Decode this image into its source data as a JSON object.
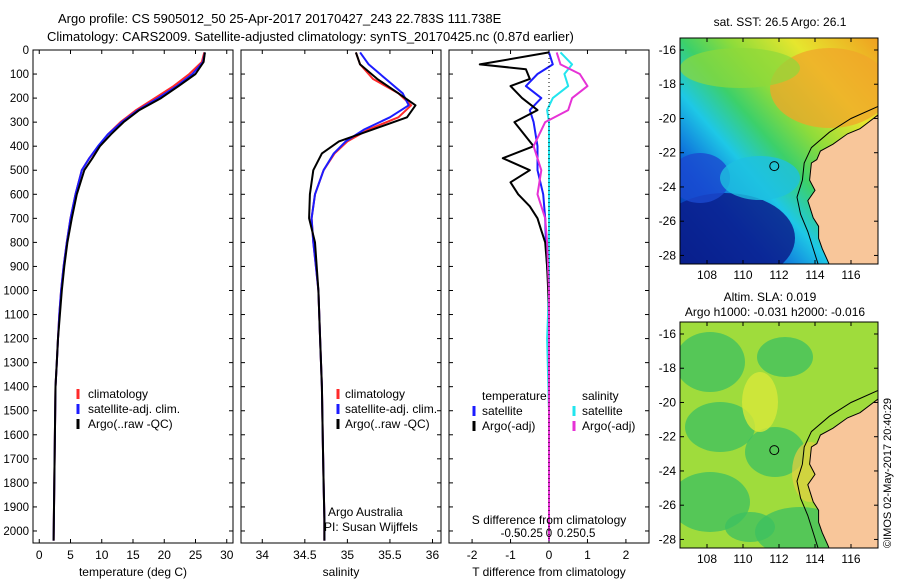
{
  "header": {
    "line1": "Argo profile: CS 5905012_50 25-Apr-2017 20170427_243 22.783S 111.738E",
    "line2": "Climatology: CARS2009. Satellite-adjusted climatology: synTS_20170425.nc (0.87d earlier)"
  },
  "footer_stamp": "©IMOS 02-May-2017 20:40:29",
  "colors": {
    "climatology": "#ff2a2a",
    "satellite": "#1c1cff",
    "argo": "#000000",
    "satellite_s": "#22e5ee",
    "argo_s": "#e632d6"
  },
  "chart_data": [
    {
      "type": "line",
      "id": "temperature",
      "xlabel": "temperature (deg C)",
      "ylabel": "",
      "xlim": [
        -1,
        31
      ],
      "ylim": [
        2050,
        0
      ],
      "xticks": [
        0,
        5,
        10,
        15,
        20,
        25,
        30
      ],
      "yticks": [
        0,
        100,
        200,
        300,
        400,
        500,
        600,
        700,
        800,
        900,
        1000,
        1100,
        1200,
        1300,
        1400,
        1500,
        1600,
        1700,
        1800,
        1900,
        2000
      ],
      "legend": [
        "climatology",
        "satellite-adj. clim.",
        "Argo(..raw -QC)"
      ],
      "series": [
        {
          "name": "climatology",
          "color": "#ff2a2a",
          "x": [
            26.4,
            26.0,
            24.0,
            21.5,
            18.5,
            15.5,
            13.0,
            11.0,
            9.5,
            8.0,
            6.8,
            5.8,
            5.0,
            4.4,
            3.9,
            3.5,
            3.2,
            3.0,
            2.8,
            2.6,
            2.5,
            2.4,
            2.3
          ],
          "y": [
            10,
            50,
            100,
            150,
            200,
            250,
            300,
            350,
            400,
            450,
            500,
            600,
            700,
            800,
            900,
            1000,
            1100,
            1200,
            1300,
            1400,
            1600,
            1800,
            2040
          ]
        },
        {
          "name": "satellite-adj. clim.",
          "color": "#1c1cff",
          "x": [
            26.5,
            26.2,
            24.5,
            22.0,
            19.0,
            15.8,
            13.2,
            11.0,
            9.4,
            8.0,
            6.8,
            5.8,
            5.0,
            4.4,
            3.9,
            3.5,
            3.2,
            3.0,
            2.8,
            2.6,
            2.5,
            2.4,
            2.3
          ],
          "y": [
            10,
            50,
            100,
            150,
            200,
            250,
            300,
            350,
            400,
            450,
            500,
            600,
            700,
            800,
            900,
            1000,
            1100,
            1200,
            1300,
            1400,
            1600,
            1800,
            2040
          ]
        },
        {
          "name": "Argo(..raw -QC)",
          "color": "#000000",
          "x": [
            26.5,
            26.3,
            25.0,
            22.3,
            19.5,
            16.0,
            13.5,
            11.5,
            9.7,
            8.5,
            7.2,
            6.0,
            5.2,
            4.5,
            4.0,
            3.6,
            3.3,
            3.0,
            2.8,
            2.6,
            2.5,
            2.4,
            2.3
          ],
          "y": [
            10,
            50,
            100,
            150,
            200,
            250,
            300,
            350,
            400,
            450,
            500,
            600,
            700,
            800,
            900,
            1000,
            1100,
            1200,
            1300,
            1400,
            1600,
            1800,
            2040
          ]
        }
      ]
    },
    {
      "type": "line",
      "id": "salinity",
      "xlabel": "salinity",
      "ylabel": "",
      "xlim": [
        33.75,
        36.1
      ],
      "ylim": [
        2050,
        0
      ],
      "xticks": [
        34,
        34.5,
        35,
        35.5,
        36
      ],
      "legend": [
        "climatology",
        "satellite-adj. clim.",
        "Argo(..raw -QC)"
      ],
      "annotation": [
        "Argo Australia",
        "PI: Susan Wijffels"
      ],
      "series": [
        {
          "name": "climatology",
          "color": "#ff2a2a",
          "x": [
            35.1,
            35.15,
            35.3,
            35.6,
            35.75,
            35.6,
            35.25,
            35.0,
            34.85,
            34.72,
            34.62,
            34.58,
            34.6,
            34.63,
            34.66,
            34.68,
            34.7,
            34.71,
            34.72,
            34.73,
            34.73
          ],
          "y": [
            10,
            60,
            120,
            180,
            230,
            280,
            330,
            380,
            430,
            500,
            600,
            700,
            800,
            900,
            1000,
            1200,
            1400,
            1600,
            1800,
            1950,
            2040
          ]
        },
        {
          "name": "satellite-adj. clim.",
          "color": "#1c1cff",
          "x": [
            35.15,
            35.25,
            35.45,
            35.65,
            35.72,
            35.5,
            35.2,
            34.98,
            34.84,
            34.72,
            34.62,
            34.58,
            34.6,
            34.63,
            34.66,
            34.68,
            34.7,
            34.71,
            34.72,
            34.73,
            34.73
          ],
          "y": [
            10,
            60,
            120,
            180,
            230,
            280,
            330,
            380,
            430,
            500,
            600,
            700,
            800,
            900,
            1000,
            1200,
            1400,
            1600,
            1800,
            1950,
            2040
          ]
        },
        {
          "name": "Argo(..raw -QC)",
          "color": "#000000",
          "x": [
            35.1,
            35.15,
            35.35,
            35.6,
            35.8,
            35.7,
            35.3,
            34.9,
            34.7,
            34.6,
            34.56,
            34.55,
            34.62,
            34.64,
            34.66,
            34.68,
            34.7,
            34.71,
            34.72,
            34.73,
            34.73
          ],
          "y": [
            10,
            60,
            120,
            180,
            230,
            280,
            330,
            380,
            430,
            500,
            600,
            700,
            800,
            900,
            1000,
            1200,
            1400,
            1600,
            1800,
            1950,
            2040
          ]
        }
      ]
    },
    {
      "type": "line",
      "id": "differences",
      "xlabel": "T difference from climatology",
      "xlabel_top": "S difference from climatology",
      "xlim": [
        -2.6,
        2.6
      ],
      "ylim": [
        2050,
        0
      ],
      "xticks": [
        -2,
        -1,
        0,
        1,
        2
      ],
      "xticks_s_labels": [
        "-0.5",
        "-0.25",
        "0",
        "0.25",
        "0.5"
      ],
      "xticks_s_values": [
        -1,
        -0.5,
        0,
        0.5,
        1
      ],
      "legend_t": {
        "title": "temperature",
        "items": [
          "satellite",
          "Argo(-adj)"
        ]
      },
      "legend_s": {
        "title": "salinity",
        "items": [
          "satellite",
          "Argo(-adj)"
        ]
      },
      "series": [
        {
          "name": "satellite",
          "group": "temperature",
          "color": "#1c1cff",
          "x": [
            0.0,
            0.1,
            -0.3,
            -0.6,
            -0.2,
            -0.5,
            -0.4,
            -0.3,
            -0.3,
            -0.15,
            -0.1,
            -0.08,
            -0.05,
            0.0,
            0.0,
            0.0,
            0.0
          ],
          "y": [
            10,
            60,
            100,
            150,
            200,
            250,
            300,
            400,
            500,
            600,
            700,
            800,
            900,
            1000,
            1200,
            1600,
            2040
          ]
        },
        {
          "name": "Argo(-adj)",
          "group": "temperature",
          "color": "#000000",
          "x": [
            0.0,
            -1.8,
            -0.6,
            -0.5,
            -1.0,
            -0.7,
            -0.3,
            -0.9,
            -0.4,
            -1.2,
            -0.5,
            -1.0,
            -0.8,
            -0.5,
            -0.3,
            -0.2,
            -0.1,
            -0.05,
            -0.02,
            0.0,
            0.0
          ],
          "y": [
            10,
            60,
            80,
            120,
            150,
            200,
            250,
            300,
            400,
            450,
            500,
            550,
            600,
            650,
            700,
            750,
            800,
            900,
            1000,
            1500,
            2040
          ]
        },
        {
          "name": "satellite",
          "group": "salinity",
          "color": "#22e5ee",
          "x": [
            0.3,
            0.6,
            0.4,
            0.5,
            0.1,
            -0.05,
            0.0,
            0.0,
            0.0,
            0.0,
            0.0,
            0.0,
            -0.05,
            0.0,
            0.0
          ],
          "y": [
            10,
            60,
            100,
            150,
            200,
            250,
            300,
            400,
            500,
            600,
            800,
            1000,
            1200,
            1500,
            2040
          ]
        },
        {
          "name": "Argo(-adj)",
          "group": "salinity",
          "color": "#e632d6",
          "x": [
            0.2,
            0.3,
            0.8,
            1.0,
            0.6,
            0.5,
            -0.1,
            -0.4,
            -0.2,
            -0.3,
            -0.1,
            -0.05,
            0.0,
            0.0,
            0.0
          ],
          "y": [
            10,
            60,
            100,
            150,
            200,
            250,
            300,
            400,
            500,
            600,
            700,
            800,
            1000,
            1500,
            2040
          ]
        }
      ]
    },
    {
      "type": "heatmap",
      "id": "sst_map",
      "title": "sat. SST: 26.5 Argo: 26.1",
      "xlim": [
        106.5,
        117.5
      ],
      "ylim": [
        -28.5,
        -15.3
      ],
      "xticks": [
        108,
        110,
        112,
        114,
        116
      ],
      "yticks": [
        -16,
        -18,
        -20,
        -22,
        -24,
        -26,
        -28
      ],
      "argo_position": {
        "lon": 111.738,
        "lat": -22.783
      }
    },
    {
      "type": "heatmap",
      "id": "sla_map",
      "title_lines": [
        "Altim. SLA: 0.019",
        "Argo h1000: -0.031 h2000: -0.016"
      ],
      "xlim": [
        106.5,
        117.5
      ],
      "ylim": [
        -28.5,
        -15.3
      ],
      "xticks": [
        108,
        110,
        112,
        114,
        116
      ],
      "yticks": [
        -16,
        -18,
        -20,
        -22,
        -24,
        -26,
        -28
      ],
      "argo_position": {
        "lon": 111.738,
        "lat": -22.783
      }
    }
  ]
}
